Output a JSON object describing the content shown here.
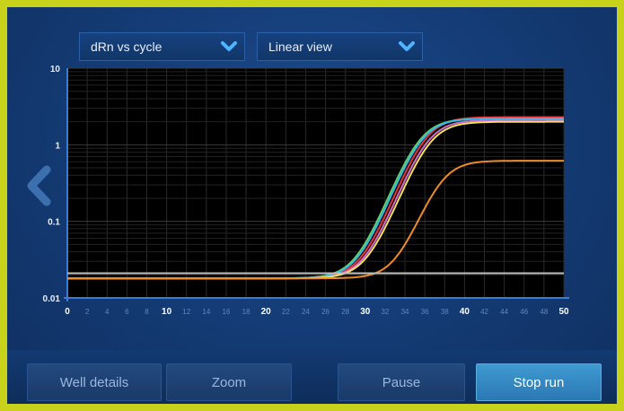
{
  "dropdowns": {
    "plot_type": {
      "label": "dRn vs cycle"
    },
    "view": {
      "label": "Linear view"
    }
  },
  "buttons": {
    "well_details": "Well details",
    "zoom": "Zoom",
    "pause": "Pause",
    "stop_run": "Stop run"
  },
  "icons": {
    "back": "chevron-left-icon",
    "dropdown": "chevron-down-icon"
  },
  "colors": {
    "frame": "#c9d21a",
    "screen": "#153d78",
    "plot_bg": "#000000",
    "axis": "#3a7bd5",
    "accent": "#2f8ac6"
  },
  "chart_data": {
    "type": "line",
    "title": "",
    "xlabel": "",
    "ylabel": "",
    "xlim": [
      0,
      50
    ],
    "ylim": [
      0.01,
      10
    ],
    "yscale": "log",
    "grid": true,
    "y_ticks": [
      "10",
      "1",
      "0.1",
      "0.01"
    ],
    "x_ticks": [
      "0",
      "2",
      "4",
      "6",
      "8",
      "10",
      "12",
      "14",
      "16",
      "18",
      "20",
      "22",
      "24",
      "26",
      "28",
      "30",
      "32",
      "34",
      "36",
      "38",
      "40",
      "42",
      "44",
      "46",
      "48",
      "50"
    ],
    "series": [
      {
        "color": "#e8333a",
        "baseline": 0.018,
        "plateau": 2.3,
        "midpoint": 36.0,
        "slope": 1.3
      },
      {
        "color": "#5fd06a",
        "baseline": 0.018,
        "plateau": 2.2,
        "midpoint": 35.4,
        "slope": 1.3
      },
      {
        "color": "#38b8e8",
        "baseline": 0.018,
        "plateau": 2.2,
        "midpoint": 35.6,
        "slope": 1.3
      },
      {
        "color": "#d070c8",
        "baseline": 0.018,
        "plateau": 2.1,
        "midpoint": 36.2,
        "slope": 1.3
      },
      {
        "color": "#f2e25a",
        "baseline": 0.018,
        "plateau": 2.0,
        "midpoint": 36.4,
        "slope": 1.3
      },
      {
        "color": "#ee8a2a",
        "baseline": 0.018,
        "plateau": 0.62,
        "midpoint": 37.6,
        "slope": 1.25
      },
      {
        "color": "#bfbfbf",
        "baseline": 0.021,
        "plateau": 0.021,
        "midpoint": 36.0,
        "slope": 1.0
      }
    ]
  }
}
